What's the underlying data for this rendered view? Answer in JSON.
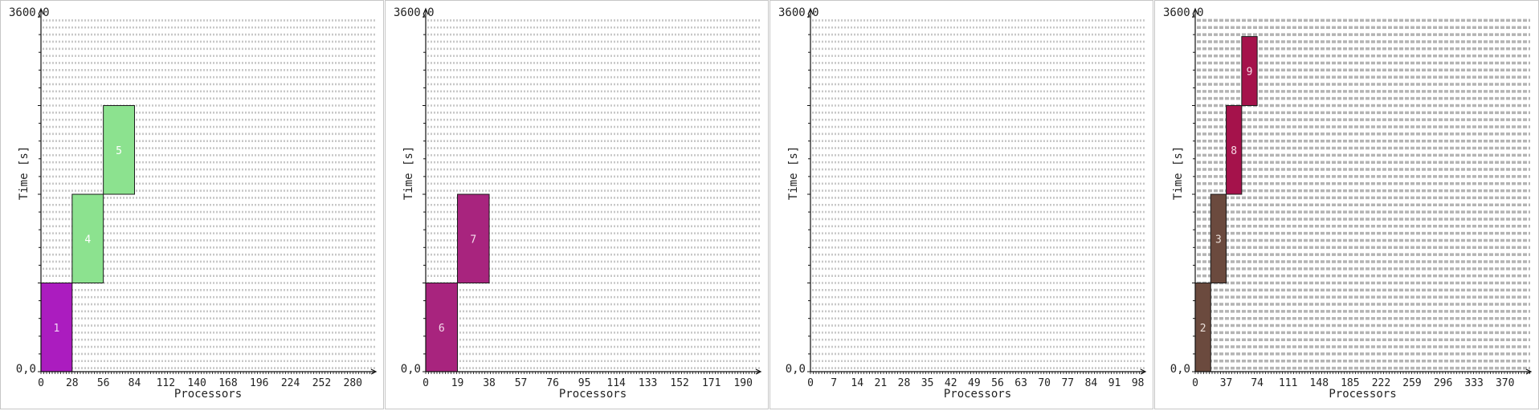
{
  "chart_data": [
    {
      "type": "gantt",
      "title": "",
      "xlabel": "Processors",
      "ylabel": "Time [s]",
      "xlim": [
        0,
        300
      ],
      "ylim": [
        0,
        3600
      ],
      "y_min_label": "0,0",
      "y_max_label": "3600,0",
      "xticks": [
        "0",
        "28",
        "56",
        "84",
        "112",
        "140",
        "168",
        "196",
        "224",
        "252",
        "280"
      ],
      "grid": true,
      "jobs": [
        {
          "id": "1",
          "proc_start": 0,
          "proc_end": 28,
          "t_start": 0,
          "t_end": 900,
          "color": "#ab1cbf",
          "label_color": "#f2d6f6"
        },
        {
          "id": "4",
          "proc_start": 28,
          "proc_end": 56,
          "t_start": 900,
          "t_end": 1800,
          "color": "#8ce28f",
          "label_color": "#ffffff"
        },
        {
          "id": "5",
          "proc_start": 56,
          "proc_end": 84,
          "t_start": 1800,
          "t_end": 2700,
          "color": "#8ce28f",
          "label_color": "#ffffff"
        }
      ]
    },
    {
      "type": "gantt",
      "title": "",
      "xlabel": "Processors",
      "ylabel": "Time [s]",
      "xlim": [
        0,
        200
      ],
      "ylim": [
        0,
        3600
      ],
      "y_min_label": "0,0",
      "y_max_label": "3600,0",
      "xticks": [
        "0",
        "19",
        "38",
        "57",
        "76",
        "95",
        "114",
        "133",
        "152",
        "171",
        "190"
      ],
      "grid": true,
      "jobs": [
        {
          "id": "6",
          "proc_start": 0,
          "proc_end": 19,
          "t_start": 0,
          "t_end": 900,
          "color": "#a8247e",
          "label_color": "#f4dcec"
        },
        {
          "id": "7",
          "proc_start": 19,
          "proc_end": 38,
          "t_start": 900,
          "t_end": 1800,
          "color": "#a8247e",
          "label_color": "#f4dcec"
        }
      ]
    },
    {
      "type": "gantt",
      "title": "",
      "xlabel": "Processors",
      "ylabel": "Time [s]",
      "xlim": [
        0,
        100
      ],
      "ylim": [
        0,
        3600
      ],
      "y_min_label": "0,0",
      "y_max_label": "3600,0",
      "xticks": [
        "0",
        "7",
        "14",
        "21",
        "28",
        "35",
        "42",
        "49",
        "56",
        "63",
        "70",
        "77",
        "84",
        "91",
        "98"
      ],
      "grid": true,
      "jobs": []
    },
    {
      "type": "gantt",
      "title": "",
      "xlabel": "Processors",
      "ylabel": "Time [s]",
      "xlim": [
        0,
        400
      ],
      "ylim": [
        0,
        3600
      ],
      "y_min_label": "0,0",
      "y_max_label": "3600,0",
      "xticks": [
        "0",
        "37",
        "74",
        "111",
        "148",
        "185",
        "222",
        "259",
        "296",
        "333",
        "370"
      ],
      "grid": true,
      "jobs": [
        {
          "id": "2",
          "proc_start": 0,
          "proc_end": 18.5,
          "t_start": 0,
          "t_end": 900,
          "color": "#6b4a3e",
          "label_color": "#eadfd9"
        },
        {
          "id": "3",
          "proc_start": 18.5,
          "proc_end": 37,
          "t_start": 900,
          "t_end": 1800,
          "color": "#6b4a3e",
          "label_color": "#eadfd9"
        },
        {
          "id": "8",
          "proc_start": 37,
          "proc_end": 55.5,
          "t_start": 1800,
          "t_end": 2700,
          "color": "#a5124b",
          "label_color": "#f6d8e4"
        },
        {
          "id": "9",
          "proc_start": 55.5,
          "proc_end": 74,
          "t_start": 2700,
          "t_end": 3400,
          "color": "#a5124b",
          "label_color": "#f6d8e4"
        }
      ]
    }
  ]
}
